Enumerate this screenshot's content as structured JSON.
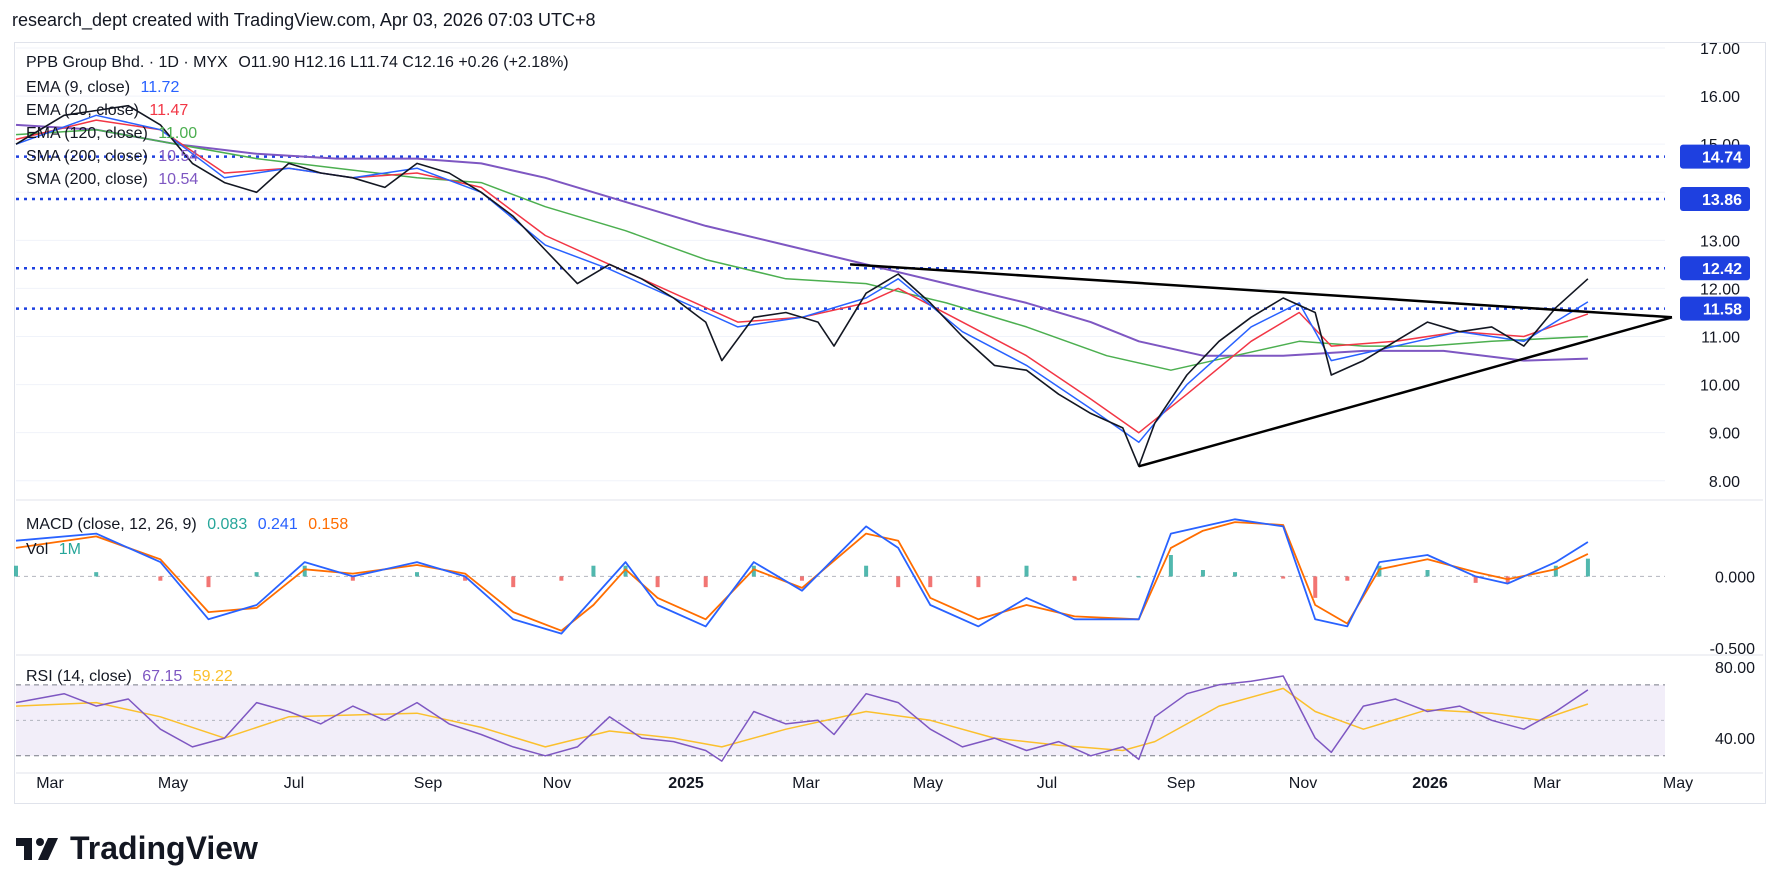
{
  "header": {
    "text": "research_dept created with TradingView.com, Apr 03, 2026 07:03 UTC+8"
  },
  "legend": {
    "symbol": "PPB Group Bhd. · 1D · MYX",
    "ohlc": "O11.90  H12.16  L11.74  C12.16  +0.26 (+2.18%)",
    "ema9": {
      "label": "EMA (9, close)",
      "value": "11.72",
      "color": "#2962ff"
    },
    "ema20": {
      "label": "EMA (20, close)",
      "value": "11.47",
      "color": "#f23645"
    },
    "ema120": {
      "label": "EMA (120, close)",
      "value": "11.00",
      "color": "#4caf50"
    },
    "sma200a": {
      "label": "SMA (200, close)",
      "value": "10.54",
      "color": "#7e57c2"
    },
    "sma200b": {
      "label": "SMA (200, close)",
      "value": "10.54",
      "color": "#7e57c2"
    },
    "macd": {
      "label": "MACD (close, 12, 26, 9)",
      "hist": "0.083",
      "macd": "0.241",
      "signal": "0.158",
      "hist_color": "#26a69a",
      "macd_color": "#2962ff",
      "signal_color": "#ff6d00"
    },
    "vol": {
      "label": "Vol",
      "value": "1M",
      "color": "#26a69a"
    },
    "rsi": {
      "label": "RSI (14, close)",
      "value": "67.15",
      "ma": "59.22",
      "rsi_color": "#7e57c2",
      "ma_color": "#fbc02d"
    }
  },
  "chart_data": {
    "type": "line",
    "x_ticks": [
      "Mar",
      "May",
      "Jul",
      "Sep",
      "Nov",
      "2025",
      "Mar",
      "May",
      "Jul",
      "Sep",
      "Nov",
      "2026",
      "Mar",
      "May"
    ],
    "price_axis_ticks": [
      "17.00",
      "16.00",
      "15.00",
      "14.00",
      "13.00",
      "12.00",
      "11.00",
      "10.00",
      "9.00",
      "8.00"
    ],
    "price_ylim": [
      7.6,
      17.0
    ],
    "horizontal_levels": [
      "14.74",
      "13.86",
      "12.42",
      "11.58"
    ],
    "level_color": "#1e40e0",
    "price_series": [
      [
        0,
        15.0
      ],
      [
        6,
        15.6
      ],
      [
        10,
        15.7
      ],
      [
        14,
        15.8
      ],
      [
        18,
        15.4
      ],
      [
        22,
        14.6
      ],
      [
        26,
        14.2
      ],
      [
        30,
        14.0
      ],
      [
        34,
        14.6
      ],
      [
        38,
        14.4
      ],
      [
        42,
        14.3
      ],
      [
        46,
        14.1
      ],
      [
        50,
        14.6
      ],
      [
        54,
        14.4
      ],
      [
        58,
        14.0
      ],
      [
        62,
        13.5
      ],
      [
        66,
        12.8
      ],
      [
        70,
        12.1
      ],
      [
        74,
        12.5
      ],
      [
        78,
        12.2
      ],
      [
        82,
        11.8
      ],
      [
        86,
        11.3
      ],
      [
        88,
        10.5
      ],
      [
        92,
        11.4
      ],
      [
        96,
        11.5
      ],
      [
        100,
        11.3
      ],
      [
        102,
        10.8
      ],
      [
        106,
        11.9
      ],
      [
        110,
        12.3
      ],
      [
        114,
        11.7
      ],
      [
        118,
        11.0
      ],
      [
        122,
        10.4
      ],
      [
        126,
        10.3
      ],
      [
        130,
        9.8
      ],
      [
        134,
        9.4
      ],
      [
        138,
        9.1
      ],
      [
        140,
        8.3
      ],
      [
        142,
        9.2
      ],
      [
        146,
        10.2
      ],
      [
        150,
        10.9
      ],
      [
        154,
        11.4
      ],
      [
        158,
        11.8
      ],
      [
        162,
        11.5
      ],
      [
        164,
        10.2
      ],
      [
        168,
        10.5
      ],
      [
        172,
        10.9
      ],
      [
        176,
        11.3
      ],
      [
        180,
        11.1
      ],
      [
        184,
        11.2
      ],
      [
        188,
        10.8
      ],
      [
        192,
        11.6
      ],
      [
        196,
        12.2
      ]
    ],
    "ema9_series": [
      [
        0,
        15.0
      ],
      [
        10,
        15.6
      ],
      [
        18,
        15.3
      ],
      [
        26,
        14.3
      ],
      [
        34,
        14.5
      ],
      [
        42,
        14.3
      ],
      [
        50,
        14.5
      ],
      [
        58,
        14.0
      ],
      [
        66,
        12.9
      ],
      [
        74,
        12.4
      ],
      [
        82,
        11.8
      ],
      [
        90,
        11.2
      ],
      [
        98,
        11.4
      ],
      [
        106,
        11.8
      ],
      [
        110,
        12.2
      ],
      [
        118,
        11.1
      ],
      [
        126,
        10.4
      ],
      [
        134,
        9.5
      ],
      [
        140,
        8.8
      ],
      [
        146,
        10.0
      ],
      [
        154,
        11.2
      ],
      [
        160,
        11.7
      ],
      [
        164,
        10.5
      ],
      [
        172,
        10.8
      ],
      [
        180,
        11.1
      ],
      [
        188,
        10.9
      ],
      [
        196,
        11.72
      ]
    ],
    "ema20_series": [
      [
        0,
        15.1
      ],
      [
        10,
        15.5
      ],
      [
        18,
        15.3
      ],
      [
        26,
        14.4
      ],
      [
        34,
        14.5
      ],
      [
        42,
        14.3
      ],
      [
        50,
        14.4
      ],
      [
        58,
        14.1
      ],
      [
        66,
        13.1
      ],
      [
        74,
        12.5
      ],
      [
        82,
        11.9
      ],
      [
        90,
        11.3
      ],
      [
        98,
        11.4
      ],
      [
        106,
        11.7
      ],
      [
        110,
        12.0
      ],
      [
        118,
        11.3
      ],
      [
        126,
        10.6
      ],
      [
        134,
        9.7
      ],
      [
        140,
        9.0
      ],
      [
        146,
        9.8
      ],
      [
        154,
        10.9
      ],
      [
        160,
        11.5
      ],
      [
        164,
        10.8
      ],
      [
        172,
        10.9
      ],
      [
        180,
        11.1
      ],
      [
        188,
        11.0
      ],
      [
        196,
        11.47
      ]
    ],
    "ema120_series": [
      [
        0,
        15.2
      ],
      [
        10,
        15.3
      ],
      [
        20,
        15.0
      ],
      [
        30,
        14.7
      ],
      [
        40,
        14.5
      ],
      [
        50,
        14.3
      ],
      [
        58,
        14.2
      ],
      [
        66,
        13.7
      ],
      [
        76,
        13.2
      ],
      [
        86,
        12.6
      ],
      [
        96,
        12.2
      ],
      [
        106,
        12.1
      ],
      [
        116,
        11.7
      ],
      [
        126,
        11.2
      ],
      [
        136,
        10.6
      ],
      [
        144,
        10.3
      ],
      [
        152,
        10.6
      ],
      [
        160,
        10.9
      ],
      [
        168,
        10.8
      ],
      [
        176,
        10.8
      ],
      [
        184,
        10.9
      ],
      [
        196,
        11.0
      ]
    ],
    "sma200_series": [
      [
        0,
        15.4
      ],
      [
        10,
        15.3
      ],
      [
        20,
        15.0
      ],
      [
        30,
        14.8
      ],
      [
        40,
        14.7
      ],
      [
        50,
        14.7
      ],
      [
        58,
        14.6
      ],
      [
        66,
        14.3
      ],
      [
        76,
        13.8
      ],
      [
        86,
        13.3
      ],
      [
        96,
        12.9
      ],
      [
        106,
        12.5
      ],
      [
        116,
        12.1
      ],
      [
        126,
        11.7
      ],
      [
        134,
        11.3
      ],
      [
        140,
        10.9
      ],
      [
        148,
        10.6
      ],
      [
        158,
        10.6
      ],
      [
        168,
        10.7
      ],
      [
        178,
        10.7
      ],
      [
        188,
        10.5
      ],
      [
        196,
        10.54
      ]
    ],
    "triangle": {
      "upper": [
        [
          104,
          12.5
        ],
        [
          199,
          11.4
        ]
      ],
      "lower": [
        [
          140,
          8.3
        ],
        [
          199,
          11.4
        ]
      ]
    },
    "macd_axis_ticks": [
      "0.000",
      "-0.500"
    ],
    "macd_ylim": [
      -0.55,
      0.5
    ],
    "macd_series": [
      [
        0,
        0.25
      ],
      [
        10,
        0.3
      ],
      [
        18,
        0.1
      ],
      [
        24,
        -0.3
      ],
      [
        30,
        -0.2
      ],
      [
        36,
        0.1
      ],
      [
        42,
        0.0
      ],
      [
        50,
        0.1
      ],
      [
        56,
        0.0
      ],
      [
        62,
        -0.3
      ],
      [
        68,
        -0.4
      ],
      [
        72,
        -0.15
      ],
      [
        76,
        0.1
      ],
      [
        80,
        -0.2
      ],
      [
        86,
        -0.35
      ],
      [
        92,
        0.1
      ],
      [
        98,
        -0.1
      ],
      [
        106,
        0.35
      ],
      [
        110,
        0.2
      ],
      [
        114,
        -0.2
      ],
      [
        120,
        -0.35
      ],
      [
        126,
        -0.15
      ],
      [
        132,
        -0.3
      ],
      [
        140,
        -0.3
      ],
      [
        144,
        0.3
      ],
      [
        148,
        0.35
      ],
      [
        152,
        0.4
      ],
      [
        158,
        0.35
      ],
      [
        162,
        -0.3
      ],
      [
        166,
        -0.35
      ],
      [
        170,
        0.1
      ],
      [
        176,
        0.15
      ],
      [
        182,
        0.0
      ],
      [
        186,
        -0.05
      ],
      [
        192,
        0.1
      ],
      [
        196,
        0.241
      ]
    ],
    "signal_series": [
      [
        0,
        0.2
      ],
      [
        10,
        0.28
      ],
      [
        18,
        0.12
      ],
      [
        24,
        -0.25
      ],
      [
        30,
        -0.22
      ],
      [
        36,
        0.05
      ],
      [
        42,
        0.02
      ],
      [
        50,
        0.08
      ],
      [
        56,
        0.02
      ],
      [
        62,
        -0.25
      ],
      [
        68,
        -0.38
      ],
      [
        72,
        -0.2
      ],
      [
        76,
        0.05
      ],
      [
        80,
        -0.15
      ],
      [
        86,
        -0.3
      ],
      [
        92,
        0.05
      ],
      [
        98,
        -0.08
      ],
      [
        106,
        0.3
      ],
      [
        110,
        0.25
      ],
      [
        114,
        -0.15
      ],
      [
        120,
        -0.3
      ],
      [
        126,
        -0.2
      ],
      [
        132,
        -0.28
      ],
      [
        140,
        -0.3
      ],
      [
        144,
        0.2
      ],
      [
        148,
        0.32
      ],
      [
        152,
        0.38
      ],
      [
        158,
        0.36
      ],
      [
        162,
        -0.2
      ],
      [
        166,
        -0.33
      ],
      [
        170,
        0.05
      ],
      [
        176,
        0.12
      ],
      [
        182,
        0.03
      ],
      [
        186,
        -0.02
      ],
      [
        192,
        0.05
      ],
      [
        196,
        0.158
      ]
    ],
    "rsi_axis_ticks": [
      "80.00",
      "40.00"
    ],
    "rsi_ylim": [
      22,
      84
    ],
    "rsi_bands": [
      70,
      30
    ],
    "rsi_series": [
      [
        0,
        60
      ],
      [
        6,
        65
      ],
      [
        10,
        58
      ],
      [
        14,
        62
      ],
      [
        18,
        45
      ],
      [
        22,
        35
      ],
      [
        26,
        40
      ],
      [
        30,
        60
      ],
      [
        34,
        55
      ],
      [
        38,
        48
      ],
      [
        42,
        58
      ],
      [
        46,
        50
      ],
      [
        50,
        60
      ],
      [
        54,
        48
      ],
      [
        58,
        42
      ],
      [
        62,
        35
      ],
      [
        66,
        30
      ],
      [
        70,
        35
      ],
      [
        74,
        52
      ],
      [
        78,
        40
      ],
      [
        82,
        38
      ],
      [
        86,
        33
      ],
      [
        88,
        27
      ],
      [
        92,
        55
      ],
      [
        96,
        48
      ],
      [
        100,
        50
      ],
      [
        102,
        42
      ],
      [
        106,
        65
      ],
      [
        110,
        60
      ],
      [
        114,
        45
      ],
      [
        118,
        35
      ],
      [
        122,
        40
      ],
      [
        126,
        33
      ],
      [
        130,
        38
      ],
      [
        134,
        30
      ],
      [
        138,
        35
      ],
      [
        140,
        28
      ],
      [
        142,
        52
      ],
      [
        146,
        65
      ],
      [
        150,
        70
      ],
      [
        154,
        72
      ],
      [
        158,
        75
      ],
      [
        162,
        40
      ],
      [
        164,
        32
      ],
      [
        168,
        58
      ],
      [
        172,
        62
      ],
      [
        176,
        55
      ],
      [
        180,
        58
      ],
      [
        184,
        50
      ],
      [
        188,
        45
      ],
      [
        192,
        55
      ],
      [
        196,
        67.15
      ]
    ],
    "rsi_ma_series": [
      [
        0,
        58
      ],
      [
        10,
        60
      ],
      [
        18,
        52
      ],
      [
        26,
        40
      ],
      [
        34,
        52
      ],
      [
        42,
        53
      ],
      [
        50,
        54
      ],
      [
        58,
        46
      ],
      [
        66,
        35
      ],
      [
        74,
        44
      ],
      [
        82,
        40
      ],
      [
        88,
        35
      ],
      [
        96,
        45
      ],
      [
        106,
        55
      ],
      [
        114,
        50
      ],
      [
        122,
        40
      ],
      [
        130,
        36
      ],
      [
        138,
        33
      ],
      [
        142,
        38
      ],
      [
        150,
        58
      ],
      [
        158,
        68
      ],
      [
        162,
        55
      ],
      [
        168,
        45
      ],
      [
        176,
        56
      ],
      [
        184,
        54
      ],
      [
        190,
        50
      ],
      [
        196,
        59.22
      ]
    ]
  },
  "logo": {
    "text": "TradingView"
  }
}
